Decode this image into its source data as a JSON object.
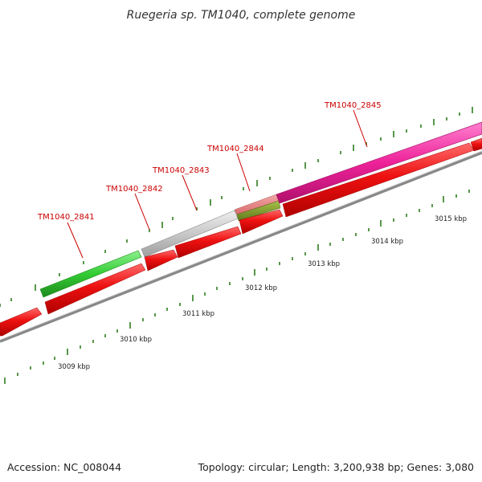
{
  "title": "Ruegeria sp. TM1040, complete genome",
  "accession": "Accession: NC_008044",
  "summary": "Topology: circular; Length: 3,200,938 bp; Genes: 3,080",
  "colors": {
    "background": "#ffffff",
    "backbone": "#999999",
    "forward_red": "#ee1111",
    "tick_green": "#2e7d1e",
    "gene_2841": "#33cc33",
    "gene_2843": "#c8c8c8",
    "gene_2844_top": "#e07f7f",
    "gene_2844_bottom": "#7a9a2a",
    "gene_2845": "#ee2299",
    "label_red": "#cc0000"
  },
  "gene_labels": [
    {
      "id": "g2841",
      "text": "TM1040_2841"
    },
    {
      "id": "g2842",
      "text": "TM1040_2842"
    },
    {
      "id": "g2843",
      "text": "TM1040_2843"
    },
    {
      "id": "g2844",
      "text": "TM1040_2844"
    },
    {
      "id": "g2845",
      "text": "TM1040_2845"
    }
  ],
  "kbp_labels": [
    "3009 kbp",
    "3010 kbp",
    "3011 kbp",
    "3012 kbp",
    "3013 kbp",
    "3014 kbp",
    "3015 kbp"
  ]
}
